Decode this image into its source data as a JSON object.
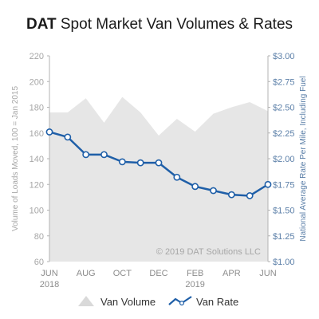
{
  "colors": {
    "area": "#e6e6e6",
    "line": "#1f5fa8",
    "left_axis_text": "#a6a6a6",
    "right_axis_text": "#5b7fa8",
    "axis_line": "#b3b3b3",
    "title": "#1a1a1a",
    "watermark": "#a6a6a6"
  },
  "title": {
    "brand": "DAT",
    "rest": " Spot Market Van Volumes & Rates"
  },
  "watermark": "© 2019 DAT Solutions LLC",
  "chart_data": {
    "type": "line",
    "title": "DAT Spot Market Van Volumes & Rates",
    "x": [
      "2018-06",
      "2018-07",
      "2018-08",
      "2018-09",
      "2018-10",
      "2018-11",
      "2018-12",
      "2019-01",
      "2019-02",
      "2019-03",
      "2019-04",
      "2019-05",
      "2019-06"
    ],
    "x_tick_labels": [
      {
        "index": 0,
        "line1": "JUN",
        "line2": "2018"
      },
      {
        "index": 2,
        "line1": "AUG",
        "line2": ""
      },
      {
        "index": 4,
        "line1": "OCT",
        "line2": ""
      },
      {
        "index": 6,
        "line1": "DEC",
        "line2": ""
      },
      {
        "index": 8,
        "line1": "FEB",
        "line2": "2019"
      },
      {
        "index": 10,
        "line1": "APR",
        "line2": ""
      },
      {
        "index": 12,
        "line1": "JUN",
        "line2": ""
      }
    ],
    "ylabel_left": "Volume of Loads Moved, 100 = Jan 2015",
    "ylabel_right": "National Average Rate Per Mile, Including Fuel",
    "ylim_left": [
      60,
      220
    ],
    "ylim_right": [
      1.0,
      3.0
    ],
    "y_ticks_left": [
      "60",
      "80",
      "100",
      "120",
      "140",
      "160",
      "180",
      "200",
      "220"
    ],
    "y_ticks_right": [
      "$1.00",
      "$1.25",
      "$1.50",
      "$1.75",
      "$2.00",
      "$2.25",
      "$2.50",
      "$2.75",
      "$3.00"
    ],
    "legend_position": "bottom",
    "series": [
      {
        "name": "Van Volume",
        "type": "area",
        "axis": "left",
        "values": [
          176,
          176,
          187,
          168,
          188,
          176,
          158,
          171,
          161,
          175,
          180,
          184,
          177
        ]
      },
      {
        "name": "Van Rate",
        "type": "line",
        "axis": "right",
        "values": [
          2.26,
          2.21,
          2.04,
          2.04,
          1.97,
          1.96,
          1.96,
          1.82,
          1.73,
          1.69,
          1.65,
          1.64,
          1.75
        ]
      }
    ]
  }
}
